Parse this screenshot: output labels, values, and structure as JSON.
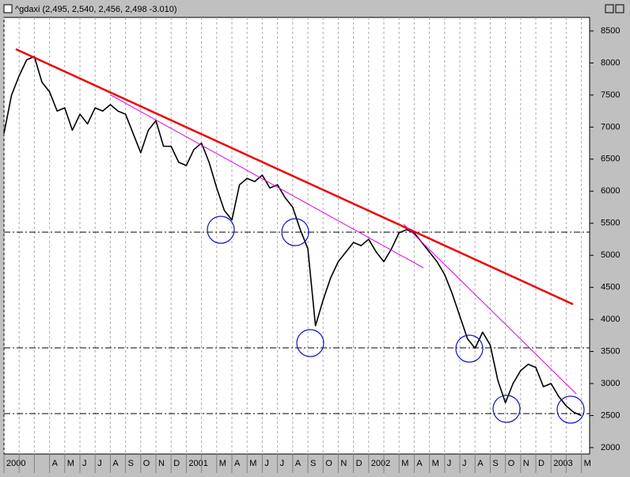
{
  "chart_data": {
    "type": "line",
    "title": "^gdaxi (2,495, 2,540, 2,456, 2,498 -3.010)",
    "categories": [
      "2000",
      null,
      null,
      null,
      null,
      null,
      "A",
      null,
      "M",
      null,
      "J",
      null,
      "J",
      null,
      "A",
      null,
      "S",
      null,
      "O",
      null,
      "N",
      null,
      "D",
      null,
      "2001",
      null,
      null,
      null,
      "M",
      null,
      "A",
      null,
      "M",
      null,
      "J",
      null,
      "J",
      null,
      "A",
      null,
      "S",
      null,
      "O",
      null,
      "N",
      null,
      "D",
      null,
      "2002",
      null,
      null,
      null,
      "M",
      null,
      "A",
      null,
      "M",
      null,
      "J",
      null,
      "J",
      null,
      "A",
      null,
      "S",
      null,
      "O",
      null,
      "N",
      null,
      "D",
      null,
      "2003",
      null,
      null,
      null,
      "M"
    ],
    "series": [
      {
        "name": "^gdaxi",
        "color": "#000000",
        "values": [
          6900,
          7500,
          7800,
          8050,
          8100,
          7700,
          7550,
          7250,
          7300,
          6950,
          7200,
          7050,
          7300,
          7250,
          7350,
          7250,
          7200,
          6900,
          6600,
          6950,
          7100,
          6700,
          6700,
          6450,
          6400,
          6650,
          6750,
          6450,
          6050,
          5700,
          5550,
          6100,
          6200,
          6150,
          6250,
          6050,
          6100,
          5900,
          5750,
          5400,
          5100,
          3900,
          4300,
          4650,
          4900,
          5050,
          5200,
          5150,
          5250,
          5050,
          4900,
          5100,
          5350,
          5400,
          5350,
          5200,
          5050,
          4900,
          4700,
          4400,
          4050,
          3700,
          3550,
          3800,
          3600,
          3050,
          2700,
          3000,
          3200,
          3300,
          3250,
          2950,
          3000,
          2800,
          2650,
          2550,
          2500
        ]
      }
    ],
    "ylim": [
      1900,
      8710
    ],
    "yticks": [
      2000,
      2500,
      3000,
      3500,
      4000,
      4500,
      5000,
      5500,
      6000,
      6500,
      7000,
      7500,
      8000,
      8500
    ],
    "grid": true
  }
}
